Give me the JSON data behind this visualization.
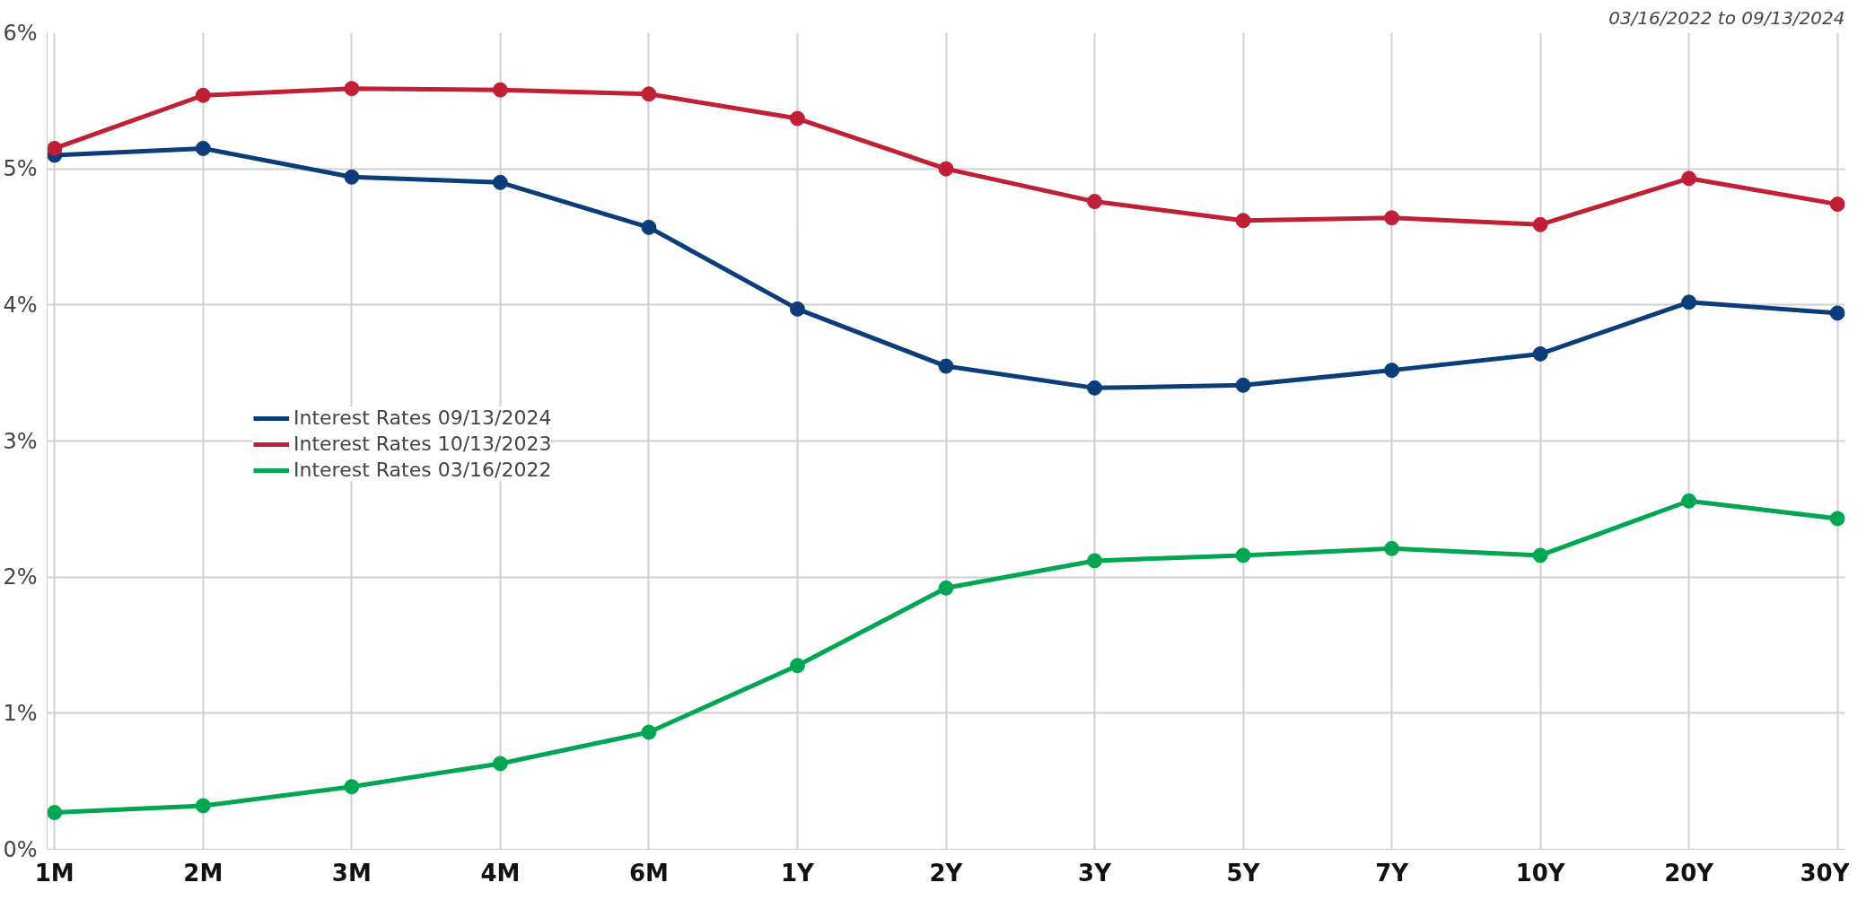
{
  "chart_data": {
    "type": "line",
    "subtitle": "03/16/2022 to 09/13/2024",
    "categories": [
      "1M",
      "2M",
      "3M",
      "4M",
      "6M",
      "1Y",
      "2Y",
      "3Y",
      "5Y",
      "7Y",
      "10Y",
      "20Y",
      "30Y"
    ],
    "series": [
      {
        "name": "Interest Rates 09/13/2024",
        "color": "#0a3d7a",
        "values": [
          5.1,
          5.15,
          4.94,
          4.9,
          4.57,
          3.97,
          3.55,
          3.39,
          3.41,
          3.52,
          3.64,
          4.02,
          3.94
        ]
      },
      {
        "name": "Interest Rates 10/13/2023",
        "color": "#c01f35",
        "values": [
          5.15,
          5.54,
          5.59,
          5.58,
          5.55,
          5.37,
          5.0,
          4.76,
          4.62,
          4.64,
          4.59,
          4.93,
          4.74
        ]
      },
      {
        "name": "Interest Rates 03/16/2022",
        "color": "#00a651",
        "values": [
          0.27,
          0.32,
          0.46,
          0.63,
          0.86,
          1.35,
          1.92,
          2.12,
          2.16,
          2.21,
          2.16,
          2.56,
          2.43
        ]
      }
    ],
    "ylim": [
      0,
      6
    ],
    "yticks": [
      {
        "value": 0,
        "label": "0%"
      },
      {
        "value": 1,
        "label": "1%"
      },
      {
        "value": 2,
        "label": "2%"
      },
      {
        "value": 3,
        "label": "3%"
      },
      {
        "value": 4,
        "label": "4%"
      },
      {
        "value": 5,
        "label": "5%"
      },
      {
        "value": 6,
        "label": "6%"
      }
    ],
    "grid": true,
    "legend": "left",
    "marker": "circle",
    "line_style": "solid"
  }
}
